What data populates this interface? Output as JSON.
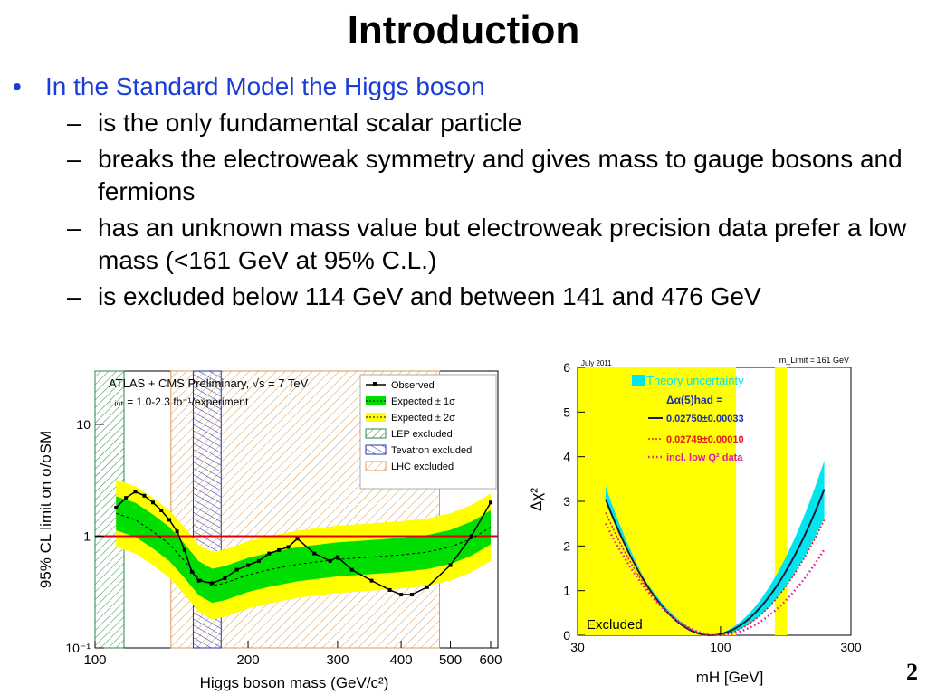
{
  "slide": {
    "title": "Introduction",
    "bullet": "In the Standard Model the Higgs boson",
    "subbullets": [
      "is the only fundamental scalar particle",
      "breaks the electroweak symmetry and gives mass to gauge bosons and fermions",
      "has an unknown mass value but electroweak precision data prefer a low mass (<161 GeV at 95% C.L.)",
      "is excluded below 114 GeV and between 141 and 476 GeV"
    ],
    "page_number": "2"
  },
  "chart_data": [
    {
      "type": "line",
      "header": "ATLAS + CMS Preliminary, √s = 7 TeV",
      "lumi": "Lᵢₙₜ = 1.0-2.3 fb⁻¹/experiment",
      "xlabel": "Higgs boson mass (GeV/c²)",
      "ylabel": "95% CL limit on σ/σSM",
      "x_scale": "log",
      "y_scale": "log",
      "xlim": [
        100,
        620
      ],
      "ylim": [
        0.1,
        30
      ],
      "x_ticks": [
        "100",
        "200",
        "300",
        "400",
        "500",
        "600"
      ],
      "y_ticks": [
        "10⁻¹",
        "1",
        "10"
      ],
      "legend": [
        "Observed",
        "Expected ± 1σ",
        "Expected ± 2σ",
        "LEP excluded",
        "Tevatron excluded",
        "LHC excluded"
      ],
      "excluded_regions": [
        {
          "name": "LEP excluded",
          "from": 100,
          "to": 114
        },
        {
          "name": "Tevatron excluded",
          "from": 156,
          "to": 177
        },
        {
          "name": "LHC excluded",
          "from": 141,
          "to": 476
        }
      ],
      "reference_line": 1,
      "series": [
        {
          "name": "Observed",
          "x": [
            110,
            115,
            120,
            125,
            130,
            135,
            140,
            145,
            150,
            155,
            160,
            170,
            180,
            190,
            200,
            210,
            220,
            230,
            240,
            250,
            270,
            290,
            300,
            320,
            350,
            380,
            400,
            420,
            450,
            500,
            550,
            600
          ],
          "y": [
            1.8,
            2.2,
            2.5,
            2.3,
            2.0,
            1.7,
            1.4,
            1.1,
            0.75,
            0.48,
            0.4,
            0.38,
            0.42,
            0.5,
            0.55,
            0.6,
            0.7,
            0.75,
            0.8,
            0.95,
            0.7,
            0.6,
            0.65,
            0.5,
            0.4,
            0.33,
            0.3,
            0.3,
            0.35,
            0.55,
            1.0,
            2.0
          ]
        },
        {
          "name": "Expected",
          "x": [
            110,
            120,
            130,
            140,
            150,
            160,
            170,
            180,
            200,
            220,
            250,
            300,
            350,
            400,
            450,
            500,
            550,
            600
          ],
          "y": [
            1.6,
            1.4,
            1.1,
            0.85,
            0.6,
            0.42,
            0.36,
            0.38,
            0.45,
            0.5,
            0.56,
            0.62,
            0.65,
            0.68,
            0.72,
            0.8,
            0.95,
            1.2
          ]
        }
      ]
    },
    {
      "type": "line",
      "xlabel": "mH [GeV]",
      "ylabel": "Δχ²",
      "x_scale": "log",
      "xlim": [
        30,
        300
      ],
      "ylim": [
        0,
        6
      ],
      "x_ticks": [
        "30",
        "100",
        "300"
      ],
      "y_ticks": [
        "0",
        "1",
        "2",
        "3",
        "4",
        "5",
        "6"
      ],
      "top_left_note": "July 2011",
      "top_right_note": "m_Limit = 161 GeV",
      "excluded_label": "Excluded",
      "legend": [
        "Theory uncertainty",
        "Δα(5)had =",
        "0.02750±0.00033",
        "0.02749±0.00010",
        "incl. low Q² data"
      ],
      "excluded_regions": [
        {
          "from": 30,
          "to": 114
        },
        {
          "from": 158,
          "to": 175
        }
      ],
      "series": [
        {
          "name": "0.02750±0.00033",
          "minimum_mH": 92
        },
        {
          "name": "0.02749±0.00010",
          "minimum_mH": 95
        },
        {
          "name": "incl. low Q² data",
          "minimum_mH": 98
        }
      ]
    }
  ]
}
